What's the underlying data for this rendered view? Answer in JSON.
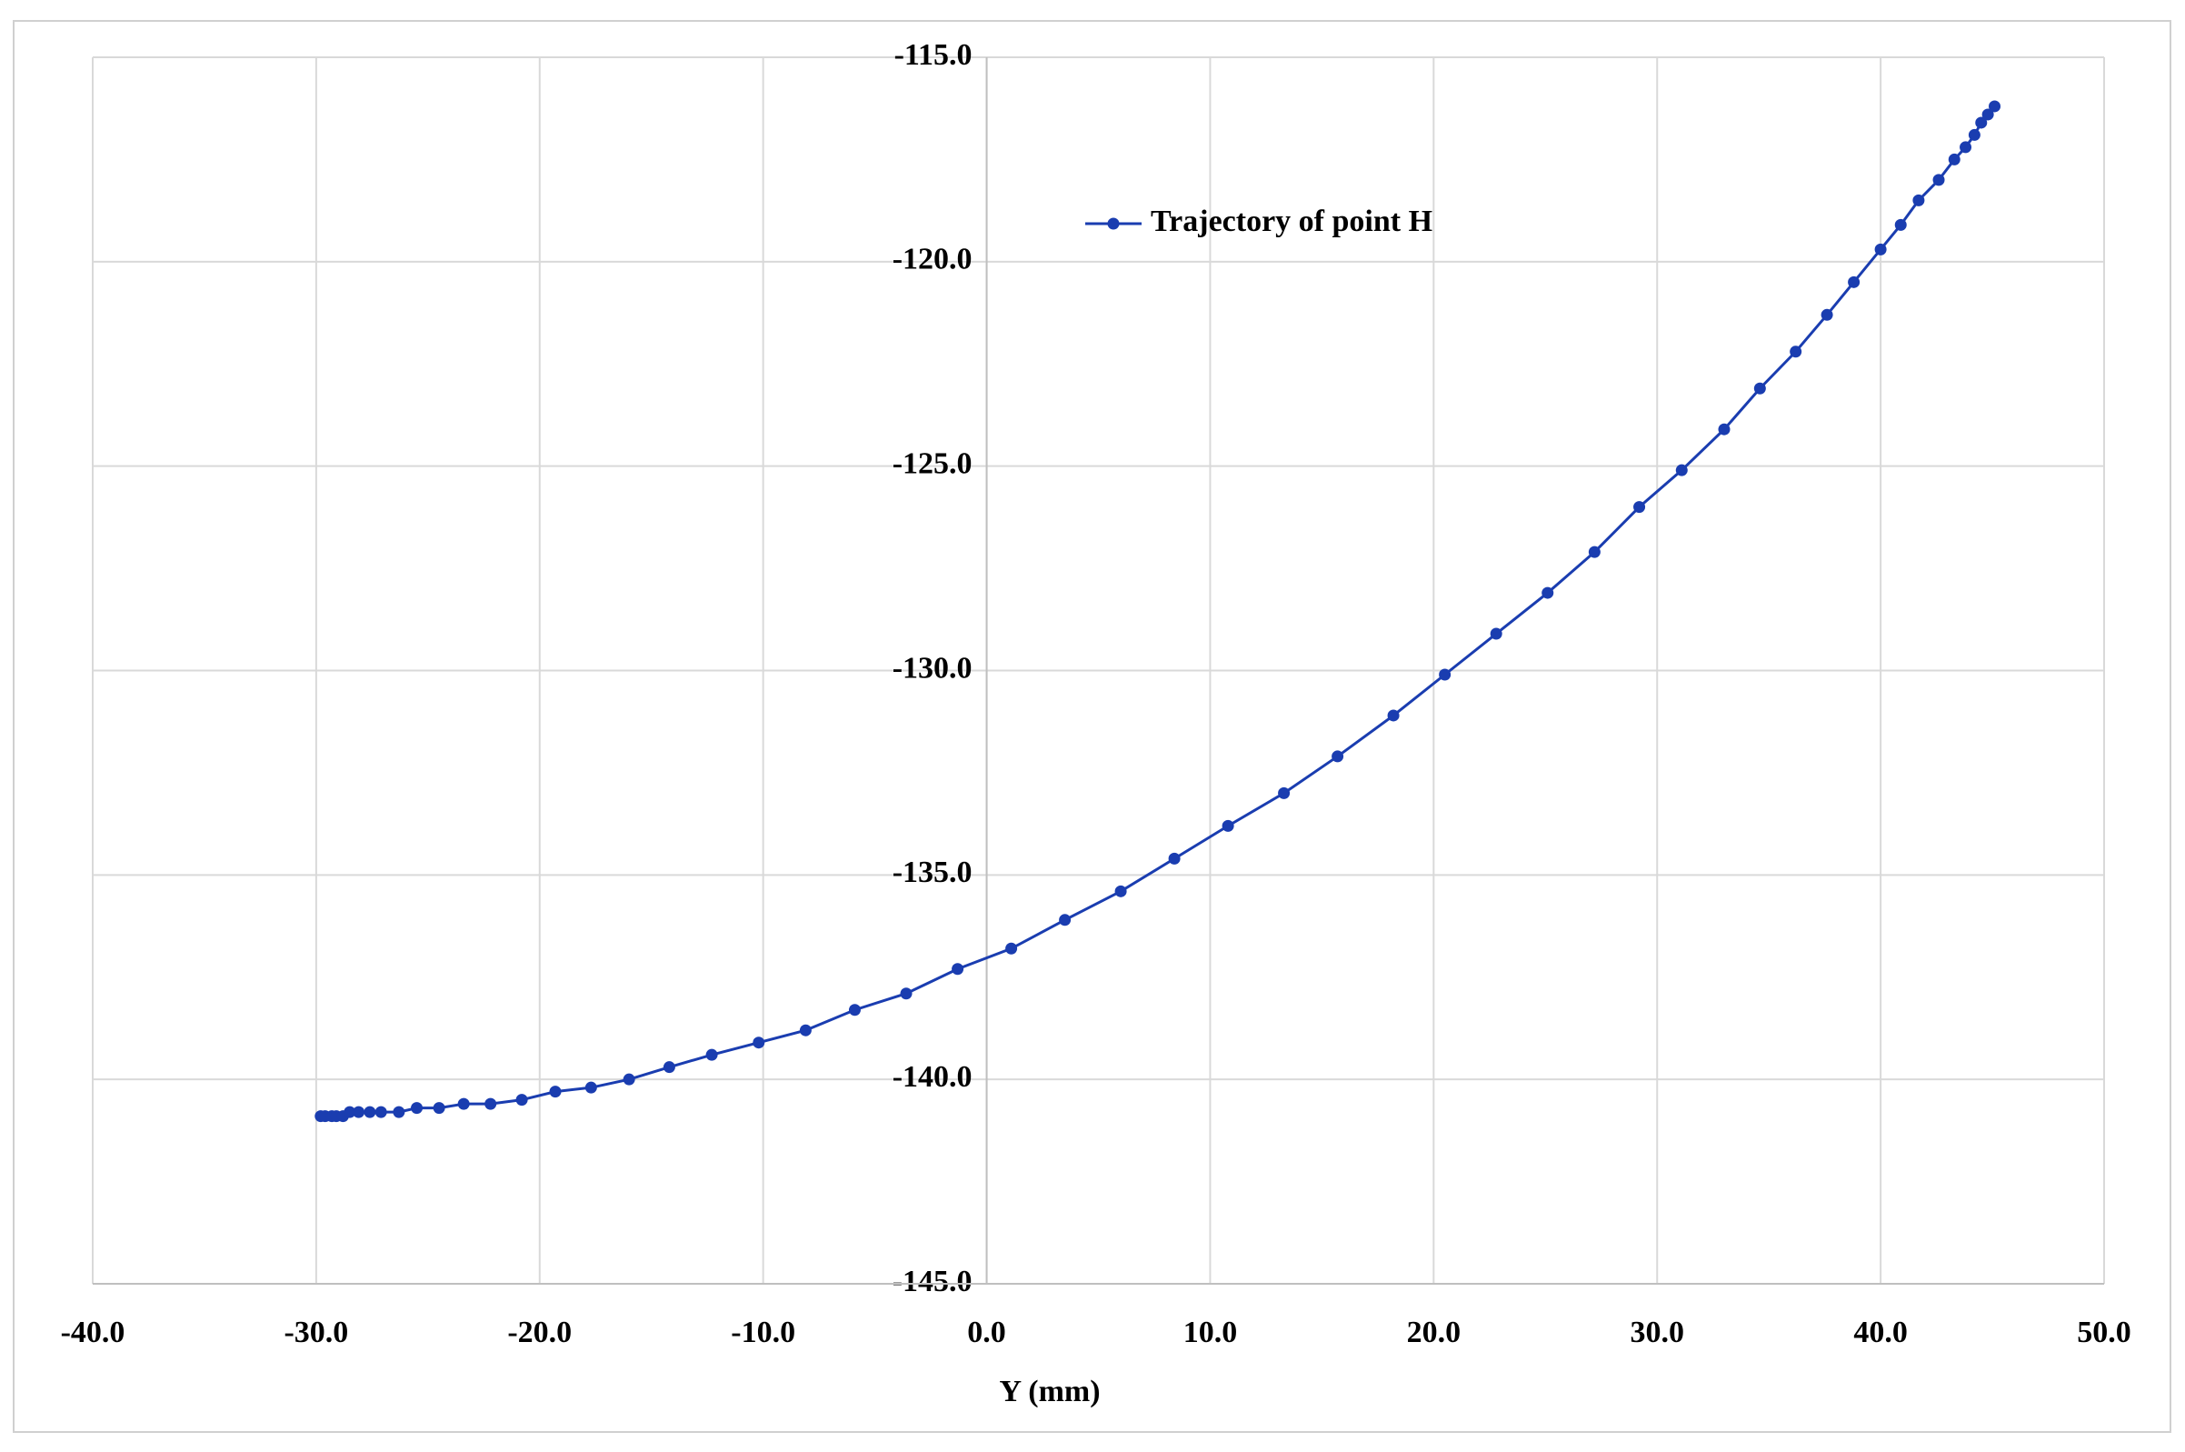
{
  "chart_data": {
    "type": "scatter-line",
    "x_label": "Y (mm)",
    "xlim": [
      -40,
      50
    ],
    "xticks": [
      {
        "value": -40,
        "label": "-40.0"
      },
      {
        "value": -30,
        "label": "-30.0"
      },
      {
        "value": -20,
        "label": "-20.0"
      },
      {
        "value": -10,
        "label": "-10.0"
      },
      {
        "value": 0,
        "label": "0.0"
      },
      {
        "value": 10,
        "label": "10.0"
      },
      {
        "value": 20,
        "label": "20.0"
      },
      {
        "value": 30,
        "label": "30.0"
      },
      {
        "value": 40,
        "label": "40.0"
      },
      {
        "value": 50,
        "label": "50.0"
      }
    ],
    "ylim": [
      -145,
      -115
    ],
    "yticks": [
      {
        "value": -115,
        "label": "-115.0"
      },
      {
        "value": -120,
        "label": "-120.0"
      },
      {
        "value": -125,
        "label": "-125.0"
      },
      {
        "value": -130,
        "label": "-130.0"
      },
      {
        "value": -135,
        "label": "-135.0"
      },
      {
        "value": -140,
        "label": "-140.0"
      },
      {
        "value": -145,
        "label": "-145.0"
      }
    ],
    "grid": true,
    "series": [
      {
        "name": "Trajectory of point H",
        "color": "#1a3db0",
        "x": [
          -29.8,
          -29.6,
          -29.3,
          -29.1,
          -28.8,
          -28.5,
          -28.1,
          -27.6,
          -27.1,
          -26.3,
          -25.5,
          -24.5,
          -23.4,
          -22.2,
          -20.8,
          -19.3,
          -17.7,
          -16.0,
          -14.2,
          -12.3,
          -10.2,
          -8.1,
          -5.9,
          -3.6,
          -1.3,
          1.1,
          3.5,
          6.0,
          8.4,
          10.8,
          13.3,
          15.7,
          18.2,
          20.5,
          22.8,
          25.1,
          27.2,
          29.2,
          31.1,
          33.0,
          34.6,
          36.2,
          37.6,
          38.8,
          40.0,
          40.9,
          41.7,
          42.6,
          43.3,
          43.8,
          44.2,
          44.5,
          44.8,
          45.1
        ],
        "values": [
          -140.9,
          -140.9,
          -140.9,
          -140.9,
          -140.9,
          -140.8,
          -140.8,
          -140.8,
          -140.8,
          -140.8,
          -140.7,
          -140.7,
          -140.6,
          -140.6,
          -140.5,
          -140.3,
          -140.2,
          -140.0,
          -139.7,
          -139.4,
          -139.1,
          -138.8,
          -138.3,
          -137.9,
          -137.3,
          -136.8,
          -136.1,
          -135.4,
          -134.6,
          -133.8,
          -133.0,
          -132.1,
          -131.1,
          -130.1,
          -129.1,
          -128.1,
          -127.1,
          -126.0,
          -125.1,
          -124.1,
          -123.1,
          -122.2,
          -121.3,
          -120.5,
          -119.7,
          -119.1,
          -118.5,
          -118.0,
          -117.5,
          -117.2,
          -116.9,
          -116.6,
          -116.4,
          -116.2
        ]
      }
    ]
  }
}
